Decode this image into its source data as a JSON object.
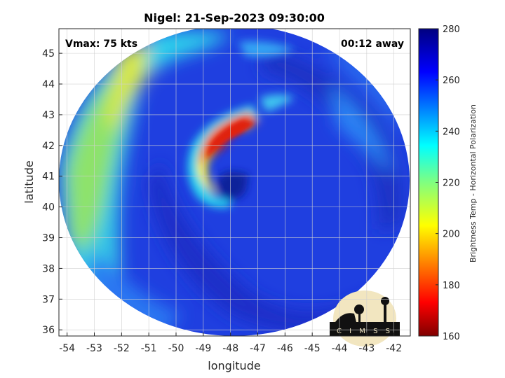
{
  "chart_data": {
    "type": "heatmap",
    "title": "Nigel: 21-Sep-2023 09:30:00",
    "xlabel": "longitude",
    "ylabel": "latitude",
    "xlim": [
      -54.3,
      -41.4
    ],
    "ylim": [
      35.8,
      45.8
    ],
    "xticks": [
      "-54",
      "-53",
      "-52",
      "-51",
      "-50",
      "-49",
      "-48",
      "-47",
      "-46",
      "-45",
      "-44",
      "-43",
      "-42"
    ],
    "yticks": [
      "36",
      "37",
      "38",
      "39",
      "40",
      "41",
      "42",
      "43",
      "44",
      "45"
    ],
    "grid": true,
    "annotations": {
      "vmax": "Vmax: 75 kts",
      "time_offset": "00:12 away"
    },
    "colorbar": {
      "label": "Brightness Temp - Horizontal Polarization",
      "range": [
        160,
        280
      ],
      "ticks": [
        "160",
        "180",
        "200",
        "220",
        "240",
        "260",
        "280"
      ],
      "colormap": "jet"
    },
    "storm_center": {
      "lon": -47.9,
      "lat": 40.6
    },
    "swath": {
      "center_lon": -47.8,
      "center_lat": 40.8
    },
    "features": [
      {
        "name": "eye",
        "lon": -47.9,
        "lat": 40.6,
        "value": 272
      },
      {
        "name": "warm-arc-north",
        "lon": -48.2,
        "lat": 42.0,
        "value": 178
      },
      {
        "name": "spiral-band-west",
        "lon": -49.1,
        "lat": 41.0,
        "value": 198
      },
      {
        "name": "western-environment",
        "lon": -53.0,
        "lat": 41.5,
        "value": 226
      },
      {
        "name": "northwest-moist-band",
        "lon": -52.2,
        "lat": 45.0,
        "value": 212
      },
      {
        "name": "southeast-ocean",
        "lon": -45.0,
        "lat": 37.5,
        "value": 258
      }
    ]
  },
  "logo": {
    "text": "CIMSS",
    "name": "cimss-logo"
  }
}
